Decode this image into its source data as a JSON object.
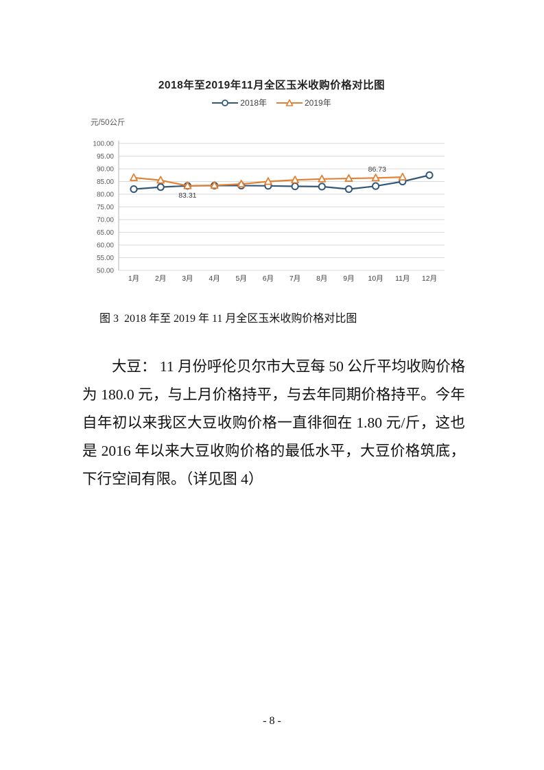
{
  "figure": {
    "title": "2018年至2019年11月全区玉米收购价格对比图",
    "unit_label": "元/50公斤",
    "caption": "图 3  2018 年至 2019 年 11 月全区玉米收购价格对比图"
  },
  "chart_data": {
    "type": "line",
    "title": "2018年至2019年11月全区玉米收购价格对比图",
    "ylabel": "元/50公斤",
    "ylim": [
      50,
      100
    ],
    "ytick_step": 5,
    "grid": true,
    "legend_position": "top",
    "categories": [
      "1月",
      "2月",
      "3月",
      "4月",
      "5月",
      "6月",
      "7月",
      "8月",
      "9月",
      "10月",
      "11月",
      "12月"
    ],
    "series": [
      {
        "name": "2018年",
        "marker": "circle",
        "color": "#31587a",
        "values": [
          82.0,
          82.8,
          83.3,
          83.4,
          83.4,
          83.3,
          83.1,
          83.0,
          82.0,
          83.2,
          85.0,
          87.5
        ]
      },
      {
        "name": "2019年",
        "marker": "triangle",
        "color": "#e28134",
        "values": [
          86.5,
          85.5,
          83.31,
          83.5,
          84.0,
          85.0,
          85.6,
          86.0,
          86.2,
          86.4,
          86.73
        ]
      }
    ],
    "annotations": [
      {
        "series": "2019年",
        "category": "3月",
        "text": "83.31",
        "position": "below"
      },
      {
        "series": "2019年",
        "category": "11月",
        "text": "86.73",
        "position": "above-left"
      }
    ],
    "colors": {
      "gridline": "#d9d9d9",
      "axis_line": "#bfbfbf",
      "y_tick_text": "#595959",
      "x_tick_text": "#404040",
      "data_label_text": "#3a3a3a"
    }
  },
  "paragraph": {
    "lines": [
      "大豆： 11 月份呼伦贝尔市大豆每 50 公斤平均收购价格",
      "为 180.0 元，与上月价格持平，与去年同期价格持平。今年",
      "自年初以来我区大豆收购价格一直徘徊在 1.80 元/斤，这也",
      "是 2016 年以来大豆收购价格的最低水平，大豆价格筑底，",
      "下行空间有限。（详见图 4）"
    ]
  },
  "page": {
    "number_label": "- 8 -"
  }
}
